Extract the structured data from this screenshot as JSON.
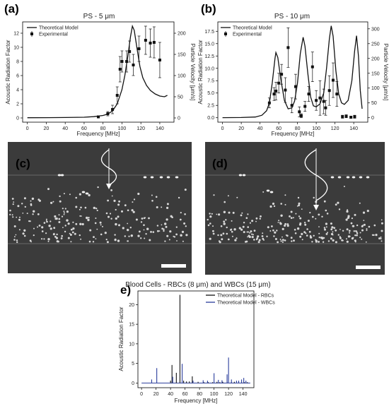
{
  "panel_letters": {
    "a": "(a)",
    "b": "(b)",
    "c": "(c)",
    "d": "(d)",
    "e": "e)"
  },
  "colors": {
    "theory": "#111111",
    "experimental": "#111111",
    "rbc": "#111111",
    "wbc": "#2a3d9c",
    "micro_bg": "#3a3a3a"
  },
  "chart_data": [
    {
      "id": "a",
      "type": "line",
      "title": "PS - 5 μm",
      "xlabel": "Frequency [MHz]",
      "ylabel": "Acoustic Radiation Factor",
      "ylabel_right": "Particle Velocity [μm/s]",
      "xlim": [
        -5,
        155
      ],
      "ylim": [
        -0.6,
        13.6
      ],
      "xticks": [
        0,
        20,
        40,
        60,
        80,
        100,
        120,
        140
      ],
      "yticks": [
        0,
        2,
        4,
        6,
        8,
        10,
        12
      ],
      "yticks_right": [
        0,
        50,
        100,
        150,
        200
      ],
      "right_scale": 16.67,
      "legend": {
        "position": "top-left",
        "theory": "Theoretical Model",
        "experimental": "Experimental"
      },
      "theory": [
        [
          0,
          0.03
        ],
        [
          20,
          0.04
        ],
        [
          40,
          0.06
        ],
        [
          60,
          0.1
        ],
        [
          70,
          0.18
        ],
        [
          80,
          0.35
        ],
        [
          85,
          0.55
        ],
        [
          90,
          1.0
        ],
        [
          95,
          2.0
        ],
        [
          100,
          4.0
        ],
        [
          103,
          6.0
        ],
        [
          106,
          8.6
        ],
        [
          109,
          11.5
        ],
        [
          111,
          13.0
        ],
        [
          113,
          12.4
        ],
        [
          116,
          9.8
        ],
        [
          119,
          7.3
        ],
        [
          122,
          5.7
        ],
        [
          126,
          4.6
        ],
        [
          130,
          3.9
        ],
        [
          135,
          3.4
        ],
        [
          140,
          3.1
        ],
        [
          145,
          3.0
        ],
        [
          148,
          3.2
        ]
      ],
      "experimental": {
        "x": [
          75,
          85,
          90,
          95,
          98,
          100,
          105,
          108,
          112,
          118,
          125,
          130,
          134,
          140
        ],
        "y": [
          0.15,
          0.6,
          1.2,
          3.2,
          6.9,
          8.0,
          8.0,
          9.4,
          7.5,
          9.8,
          11.0,
          10.6,
          10.7,
          8.2
        ],
        "err": [
          0.15,
          0.3,
          0.6,
          1.2,
          1.8,
          1.5,
          1.5,
          1.5,
          1.5,
          1.8,
          2.0,
          2.0,
          2.2,
          2.5
        ]
      }
    },
    {
      "id": "b",
      "type": "line",
      "title": "PS - 10 μm",
      "xlabel": "Frequency [MHz]",
      "ylabel": "Acoustic Radiation Factor",
      "ylabel_right": "Particle Velocity [μm/s]",
      "xlim": [
        -5,
        155
      ],
      "ylim": [
        -0.9,
        19.4
      ],
      "xticks": [
        0,
        20,
        40,
        60,
        80,
        100,
        120,
        140
      ],
      "yticks": [
        0.0,
        2.5,
        5.0,
        7.5,
        10.0,
        12.5,
        15.0,
        17.5
      ],
      "ytick_labels": [
        "0.0",
        "2.5",
        "5.0",
        "7.5",
        "10.0",
        "12.5",
        "15.0",
        "17.5"
      ],
      "yticks_right": [
        0,
        50,
        100,
        150,
        200,
        250,
        300
      ],
      "right_scale": 16.67,
      "legend": {
        "position": "top-left",
        "theory": "Theoretical Model",
        "experimental": "Experimental"
      },
      "theory": [
        [
          0,
          0.02
        ],
        [
          20,
          0.05
        ],
        [
          35,
          0.15
        ],
        [
          42,
          0.5
        ],
        [
          47,
          1.4
        ],
        [
          50,
          3.0
        ],
        [
          53,
          7.0
        ],
        [
          56,
          12.0
        ],
        [
          57,
          13.2
        ],
        [
          59,
          12.2
        ],
        [
          62,
          8.0
        ],
        [
          66,
          3.5
        ],
        [
          70,
          1.8
        ],
        [
          74,
          2.0
        ],
        [
          77,
          3.4
        ],
        [
          80,
          7.0
        ],
        [
          83,
          13.0
        ],
        [
          86,
          16.3
        ],
        [
          88,
          14.5
        ],
        [
          91,
          9.0
        ],
        [
          94,
          4.2
        ],
        [
          97,
          2.4
        ],
        [
          100,
          2.2
        ],
        [
          104,
          2.8
        ],
        [
          108,
          5.0
        ],
        [
          111,
          10.0
        ],
        [
          114,
          16.0
        ],
        [
          116,
          18.6
        ],
        [
          118,
          16.5
        ],
        [
          121,
          9.5
        ],
        [
          124,
          4.8
        ],
        [
          127,
          3.0
        ],
        [
          130,
          2.7
        ],
        [
          134,
          3.5
        ],
        [
          138,
          7.5
        ],
        [
          141,
          13.5
        ],
        [
          143,
          16.6
        ],
        [
          145,
          12.5
        ],
        [
          147,
          5.5
        ],
        [
          149,
          1.8
        ]
      ],
      "experimental": {
        "x": [
          50,
          55,
          57,
          60,
          63,
          67,
          70,
          74,
          78,
          82,
          84,
          88,
          92,
          96,
          100,
          104,
          108,
          110,
          114,
          118,
          122,
          128,
          132,
          137,
          141
        ],
        "y": [
          3.0,
          4.8,
          5.4,
          7.0,
          8.8,
          5.6,
          14.2,
          2.5,
          6.3,
          1.2,
          0.4,
          2.3,
          4.8,
          10.3,
          3.5,
          4.0,
          3.3,
          2.0,
          5.5,
          7.6,
          4.8,
          0.2,
          0.3,
          0.1,
          0.2
        ],
        "err": [
          1.0,
          1.3,
          1.8,
          2.0,
          2.0,
          2.5,
          4.0,
          1.5,
          2.5,
          1.0,
          0.4,
          1.0,
          1.5,
          3.0,
          2.0,
          3.5,
          2.5,
          1.5,
          3.0,
          3.5,
          2.5,
          0.3,
          0.3,
          0.2,
          0.3
        ]
      }
    },
    {
      "id": "e",
      "type": "bar",
      "title": "Blood Cells - RBCs (8 μm) and WBCs (15 μm)",
      "xlabel": "Frequency [MHz]",
      "ylabel": "Acoustic Radiation Factor",
      "xlim": [
        -5,
        155
      ],
      "ylim": [
        -1.2,
        23.5
      ],
      "xticks": [
        0,
        20,
        40,
        60,
        80,
        100,
        120,
        140
      ],
      "yticks": [
        0,
        5,
        10,
        15,
        20
      ],
      "legend": {
        "position": "top-right",
        "rbc": "Theoretical Model - RBCs",
        "wbc": "Theoretical Model - WBCs"
      },
      "series": [
        {
          "name": "Theoretical Model - RBCs",
          "x": [
            40,
            42,
            48,
            53,
            58,
            62,
            66,
            70,
            78,
            86,
            92,
            98,
            104,
            108,
            112,
            118,
            124,
            128,
            134,
            138,
            142,
            146
          ],
          "y": [
            0.6,
            4.6,
            2.6,
            22.5,
            0.6,
            0.4,
            0.4,
            1.7,
            0.3,
            0.2,
            0.2,
            0.2,
            0.3,
            0.2,
            0.3,
            0.3,
            0.2,
            0.3,
            0.2,
            0.2,
            0.2,
            0.2
          ]
        },
        {
          "name": "Theoretical Model - WBCs",
          "x": [
            14,
            21,
            43,
            56,
            71,
            85,
            91,
            100,
            106,
            111,
            118,
            120,
            124,
            131,
            134,
            138,
            141,
            144
          ],
          "y": [
            0.9,
            3.8,
            1.6,
            4.9,
            0.6,
            0.7,
            0.6,
            2.5,
            0.8,
            0.7,
            2.2,
            6.5,
            0.9,
            0.6,
            0.6,
            0.9,
            1.3,
            0.6
          ]
        }
      ]
    }
  ],
  "micrographs": [
    {
      "id": "c",
      "scale_bar": true,
      "wave_arrow": true
    },
    {
      "id": "d",
      "scale_bar": true,
      "wave_arrow": true
    }
  ]
}
